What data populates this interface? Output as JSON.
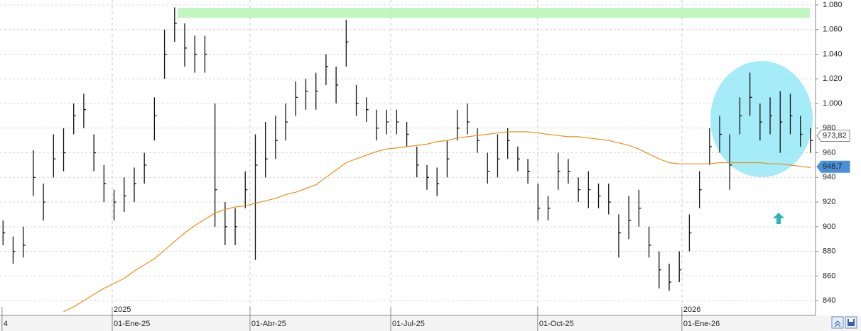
{
  "chart_data": {
    "type": "ohlc",
    "ylim": [
      828,
      1084
    ],
    "yticks": [
      {
        "value": 840,
        "label": "840"
      },
      {
        "value": 860,
        "label": "860"
      },
      {
        "value": 880,
        "label": "880"
      },
      {
        "value": 900,
        "label": "900"
      },
      {
        "value": 920,
        "label": "920"
      },
      {
        "value": 940,
        "label": "940"
      },
      {
        "value": 960,
        "label": "960"
      },
      {
        "value": 980,
        "label": "980"
      },
      {
        "value": 1000,
        "label": "1.000"
      },
      {
        "value": 1020,
        "label": "1.020"
      },
      {
        "value": 1040,
        "label": "1.040"
      },
      {
        "value": 1060,
        "label": "1.060"
      },
      {
        "value": 1080,
        "label": "1.080"
      }
    ],
    "xlim": [
      -0.3,
      80.5
    ],
    "xticks": [
      {
        "value": -0.1,
        "label": "4"
      },
      {
        "value": 10.82,
        "label": "01-Ene-25"
      },
      {
        "value": 24.47,
        "label": "01-Abr-25"
      },
      {
        "value": 38.41,
        "label": "01-Jul-25"
      },
      {
        "value": 52.97,
        "label": "01-Oct-25"
      },
      {
        "value": 67.26,
        "label": "01-Ene-26"
      }
    ],
    "year_labels": [
      {
        "value": 10.82,
        "label": "2025"
      },
      {
        "value": 67.26,
        "label": "2026"
      }
    ],
    "grid": true,
    "bar_color": "#111111",
    "high": [
      905,
      892,
      900,
      962,
      935,
      975,
      980,
      1000,
      1008,
      975,
      950,
      930,
      940,
      948,
      960,
      1005,
      1060,
      1078,
      1065,
      1055,
      1055,
      1000,
      920,
      915,
      945,
      975,
      985,
      990,
      1000,
      1018,
      1020,
      1025,
      1040,
      1030,
      1068,
      1015,
      1005,
      995,
      995,
      995,
      985,
      965,
      950,
      948,
      970,
      995,
      1000,
      980,
      960,
      975,
      980,
      965,
      955,
      935,
      925,
      960,
      955,
      940,
      945,
      935,
      935,
      910,
      925,
      930,
      900,
      880,
      870,
      880,
      910,
      945,
      980,
      990,
      975,
      1005,
      1025,
      1000,
      1005,
      1010,
      1008,
      990,
      980
    ],
    "low": [
      885,
      870,
      875,
      925,
      905,
      940,
      945,
      975,
      980,
      945,
      920,
      905,
      912,
      920,
      935,
      970,
      1020,
      1050,
      1030,
      1025,
      1025,
      900,
      885,
      885,
      915,
      873,
      940,
      955,
      970,
      990,
      995,
      995,
      1015,
      1000,
      1030,
      990,
      985,
      970,
      975,
      975,
      965,
      940,
      930,
      925,
      940,
      970,
      975,
      960,
      935,
      940,
      955,
      945,
      935,
      905,
      905,
      930,
      935,
      920,
      915,
      915,
      910,
      875,
      890,
      900,
      875,
      850,
      848,
      855,
      880,
      915,
      950,
      960,
      930,
      975,
      990,
      970,
      975,
      960,
      975,
      965,
      960
    ],
    "close": [
      895,
      880,
      885,
      940,
      920,
      955,
      960,
      990,
      995,
      960,
      935,
      920,
      925,
      935,
      950,
      990,
      1040,
      1065,
      1045,
      1040,
      1040,
      930,
      900,
      900,
      930,
      950,
      955,
      970,
      985,
      1005,
      1010,
      1010,
      1030,
      1015,
      1050,
      1000,
      995,
      980,
      985,
      985,
      975,
      950,
      940,
      935,
      955,
      980,
      985,
      970,
      945,
      955,
      970,
      955,
      945,
      915,
      915,
      945,
      945,
      930,
      930,
      925,
      920,
      895,
      905,
      915,
      885,
      865,
      855,
      865,
      895,
      930,
      965,
      975,
      950,
      990,
      1005,
      985,
      990,
      985,
      990,
      975,
      970
    ],
    "moving_average": {
      "color": "#e8901a",
      "values": [
        null,
        null,
        null,
        null,
        null,
        null,
        831,
        835,
        840,
        845,
        850,
        854,
        858,
        864,
        869,
        874,
        881,
        888,
        895,
        901,
        906,
        911,
        914,
        916,
        917,
        919,
        921,
        923,
        926,
        928,
        931,
        934,
        940,
        946,
        952,
        955,
        958,
        961,
        963,
        964,
        965,
        966,
        967,
        969,
        970,
        972,
        973,
        974,
        975,
        976,
        977,
        977,
        977,
        976,
        975,
        974,
        973,
        973,
        972,
        971,
        970,
        968,
        966,
        963,
        959,
        955,
        952,
        951,
        951,
        951,
        951,
        952,
        952,
        952,
        952,
        952,
        951,
        951,
        950,
        949,
        948
      ]
    },
    "markers": [
      {
        "value": 973.82,
        "label": "973,82"
      },
      {
        "value": 948.7,
        "label": "948,7"
      }
    ]
  }
}
